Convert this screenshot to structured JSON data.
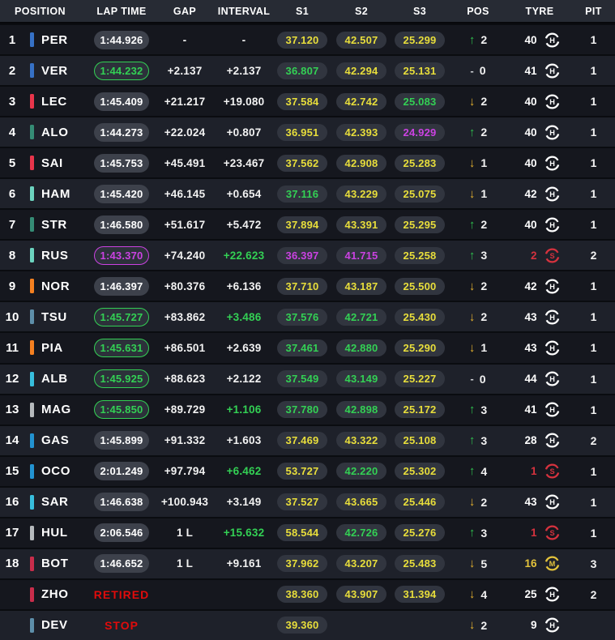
{
  "header": {
    "columns": [
      "POSITION",
      "LAP TIME",
      "GAP",
      "INTERVAL",
      "S1",
      "S2",
      "S3",
      "POS",
      "TYRE",
      "PIT"
    ]
  },
  "colors": {
    "sector_yellow": "#e8de3b",
    "sector_green": "#33d054",
    "sector_purple": "#cb42e2",
    "status_red": "#e10b0b",
    "arrow_up_green": "#2fbe4e",
    "arrow_down_yellow": "#e3b02f",
    "tyre_hard": "#ffffff",
    "tyre_soft": "#d5323e",
    "tyre_medium": "#e3c33c"
  },
  "rows": [
    {
      "position": "1",
      "team_color": "#3671C6",
      "driver": "PER",
      "lap_time": {
        "text": "1:44.926",
        "state": "normal"
      },
      "gap": {
        "text": "-",
        "state": "white"
      },
      "interval": {
        "text": "-",
        "state": "white"
      },
      "s1": {
        "text": "37.120",
        "state": "yellow"
      },
      "s2": {
        "text": "42.507",
        "state": "yellow"
      },
      "s3": {
        "text": "25.299",
        "state": "yellow"
      },
      "pos_change": {
        "dir": "up",
        "value": "2"
      },
      "tyre": {
        "laps": "40",
        "compound": "H",
        "state": "hard"
      },
      "pit": "1"
    },
    {
      "position": "2",
      "team_color": "#3671C6",
      "driver": "VER",
      "lap_time": {
        "text": "1:44.232",
        "state": "green"
      },
      "gap": {
        "text": "+2.137",
        "state": "white"
      },
      "interval": {
        "text": "+2.137",
        "state": "white"
      },
      "s1": {
        "text": "36.807",
        "state": "green"
      },
      "s2": {
        "text": "42.294",
        "state": "yellow"
      },
      "s3": {
        "text": "25.131",
        "state": "yellow"
      },
      "pos_change": {
        "dir": "none",
        "value": "0"
      },
      "tyre": {
        "laps": "41",
        "compound": "H",
        "state": "hard"
      },
      "pit": "1"
    },
    {
      "position": "3",
      "team_color": "#E8354B",
      "driver": "LEC",
      "lap_time": {
        "text": "1:45.409",
        "state": "normal"
      },
      "gap": {
        "text": "+21.217",
        "state": "white"
      },
      "interval": {
        "text": "+19.080",
        "state": "white"
      },
      "s1": {
        "text": "37.584",
        "state": "yellow"
      },
      "s2": {
        "text": "42.742",
        "state": "yellow"
      },
      "s3": {
        "text": "25.083",
        "state": "green"
      },
      "pos_change": {
        "dir": "down",
        "value": "2"
      },
      "tyre": {
        "laps": "40",
        "compound": "H",
        "state": "hard"
      },
      "pit": "1"
    },
    {
      "position": "4",
      "team_color": "#358C75",
      "driver": "ALO",
      "lap_time": {
        "text": "1:44.273",
        "state": "normal"
      },
      "gap": {
        "text": "+22.024",
        "state": "white"
      },
      "interval": {
        "text": "+0.807",
        "state": "white"
      },
      "s1": {
        "text": "36.951",
        "state": "yellow"
      },
      "s2": {
        "text": "42.393",
        "state": "yellow"
      },
      "s3": {
        "text": "24.929",
        "state": "purple"
      },
      "pos_change": {
        "dir": "up",
        "value": "2"
      },
      "tyre": {
        "laps": "40",
        "compound": "H",
        "state": "hard"
      },
      "pit": "1"
    },
    {
      "position": "5",
      "team_color": "#E8354B",
      "driver": "SAI",
      "lap_time": {
        "text": "1:45.753",
        "state": "normal"
      },
      "gap": {
        "text": "+45.491",
        "state": "white"
      },
      "interval": {
        "text": "+23.467",
        "state": "white"
      },
      "s1": {
        "text": "37.562",
        "state": "yellow"
      },
      "s2": {
        "text": "42.908",
        "state": "yellow"
      },
      "s3": {
        "text": "25.283",
        "state": "yellow"
      },
      "pos_change": {
        "dir": "down",
        "value": "1"
      },
      "tyre": {
        "laps": "40",
        "compound": "H",
        "state": "hard"
      },
      "pit": "1"
    },
    {
      "position": "6",
      "team_color": "#6CD3BF",
      "driver": "HAM",
      "lap_time": {
        "text": "1:45.420",
        "state": "normal"
      },
      "gap": {
        "text": "+46.145",
        "state": "white"
      },
      "interval": {
        "text": "+0.654",
        "state": "white"
      },
      "s1": {
        "text": "37.116",
        "state": "green"
      },
      "s2": {
        "text": "43.229",
        "state": "yellow"
      },
      "s3": {
        "text": "25.075",
        "state": "yellow"
      },
      "pos_change": {
        "dir": "down",
        "value": "1"
      },
      "tyre": {
        "laps": "42",
        "compound": "H",
        "state": "hard"
      },
      "pit": "1"
    },
    {
      "position": "7",
      "team_color": "#358C75",
      "driver": "STR",
      "lap_time": {
        "text": "1:46.580",
        "state": "normal"
      },
      "gap": {
        "text": "+51.617",
        "state": "white"
      },
      "interval": {
        "text": "+5.472",
        "state": "white"
      },
      "s1": {
        "text": "37.894",
        "state": "yellow"
      },
      "s2": {
        "text": "43.391",
        "state": "yellow"
      },
      "s3": {
        "text": "25.295",
        "state": "yellow"
      },
      "pos_change": {
        "dir": "up",
        "value": "2"
      },
      "tyre": {
        "laps": "40",
        "compound": "H",
        "state": "hard"
      },
      "pit": "1"
    },
    {
      "position": "8",
      "team_color": "#6CD3BF",
      "driver": "RUS",
      "lap_time": {
        "text": "1:43.370",
        "state": "purple"
      },
      "gap": {
        "text": "+74.240",
        "state": "white"
      },
      "interval": {
        "text": "+22.623",
        "state": "green"
      },
      "s1": {
        "text": "36.397",
        "state": "purple"
      },
      "s2": {
        "text": "41.715",
        "state": "purple"
      },
      "s3": {
        "text": "25.258",
        "state": "yellow"
      },
      "pos_change": {
        "dir": "up",
        "value": "3"
      },
      "tyre": {
        "laps": "2",
        "compound": "S",
        "state": "soft"
      },
      "pit": "2"
    },
    {
      "position": "9",
      "team_color": "#F58020",
      "driver": "NOR",
      "lap_time": {
        "text": "1:46.397",
        "state": "normal"
      },
      "gap": {
        "text": "+80.376",
        "state": "white"
      },
      "interval": {
        "text": "+6.136",
        "state": "white"
      },
      "s1": {
        "text": "37.710",
        "state": "yellow"
      },
      "s2": {
        "text": "43.187",
        "state": "yellow"
      },
      "s3": {
        "text": "25.500",
        "state": "yellow"
      },
      "pos_change": {
        "dir": "down",
        "value": "2"
      },
      "tyre": {
        "laps": "42",
        "compound": "H",
        "state": "hard"
      },
      "pit": "1"
    },
    {
      "position": "10",
      "team_color": "#5E8FAA",
      "driver": "TSU",
      "lap_time": {
        "text": "1:45.727",
        "state": "green"
      },
      "gap": {
        "text": "+83.862",
        "state": "white"
      },
      "interval": {
        "text": "+3.486",
        "state": "green"
      },
      "s1": {
        "text": "37.576",
        "state": "green"
      },
      "s2": {
        "text": "42.721",
        "state": "green"
      },
      "s3": {
        "text": "25.430",
        "state": "yellow"
      },
      "pos_change": {
        "dir": "down",
        "value": "2"
      },
      "tyre": {
        "laps": "43",
        "compound": "H",
        "state": "hard"
      },
      "pit": "1"
    },
    {
      "position": "11",
      "team_color": "#F58020",
      "driver": "PIA",
      "lap_time": {
        "text": "1:45.631",
        "state": "green"
      },
      "gap": {
        "text": "+86.501",
        "state": "white"
      },
      "interval": {
        "text": "+2.639",
        "state": "white"
      },
      "s1": {
        "text": "37.461",
        "state": "green"
      },
      "s2": {
        "text": "42.880",
        "state": "green"
      },
      "s3": {
        "text": "25.290",
        "state": "yellow"
      },
      "pos_change": {
        "dir": "down",
        "value": "1"
      },
      "tyre": {
        "laps": "43",
        "compound": "H",
        "state": "hard"
      },
      "pit": "1"
    },
    {
      "position": "12",
      "team_color": "#37BEDD",
      "driver": "ALB",
      "lap_time": {
        "text": "1:45.925",
        "state": "green"
      },
      "gap": {
        "text": "+88.623",
        "state": "white"
      },
      "interval": {
        "text": "+2.122",
        "state": "white"
      },
      "s1": {
        "text": "37.549",
        "state": "green"
      },
      "s2": {
        "text": "43.149",
        "state": "green"
      },
      "s3": {
        "text": "25.227",
        "state": "yellow"
      },
      "pos_change": {
        "dir": "none",
        "value": "0"
      },
      "tyre": {
        "laps": "44",
        "compound": "H",
        "state": "hard"
      },
      "pit": "1"
    },
    {
      "position": "13",
      "team_color": "#B6BABD",
      "driver": "MAG",
      "lap_time": {
        "text": "1:45.850",
        "state": "green"
      },
      "gap": {
        "text": "+89.729",
        "state": "white"
      },
      "interval": {
        "text": "+1.106",
        "state": "green"
      },
      "s1": {
        "text": "37.780",
        "state": "green"
      },
      "s2": {
        "text": "42.898",
        "state": "green"
      },
      "s3": {
        "text": "25.172",
        "state": "yellow"
      },
      "pos_change": {
        "dir": "up",
        "value": "3"
      },
      "tyre": {
        "laps": "41",
        "compound": "H",
        "state": "hard"
      },
      "pit": "1"
    },
    {
      "position": "14",
      "team_color": "#2293D1",
      "driver": "GAS",
      "lap_time": {
        "text": "1:45.899",
        "state": "normal"
      },
      "gap": {
        "text": "+91.332",
        "state": "white"
      },
      "interval": {
        "text": "+1.603",
        "state": "white"
      },
      "s1": {
        "text": "37.469",
        "state": "yellow"
      },
      "s2": {
        "text": "43.322",
        "state": "yellow"
      },
      "s3": {
        "text": "25.108",
        "state": "yellow"
      },
      "pos_change": {
        "dir": "up",
        "value": "3"
      },
      "tyre": {
        "laps": "28",
        "compound": "H",
        "state": "hard"
      },
      "pit": "2"
    },
    {
      "position": "15",
      "team_color": "#2293D1",
      "driver": "OCO",
      "lap_time": {
        "text": "2:01.249",
        "state": "normal"
      },
      "gap": {
        "text": "+97.794",
        "state": "white"
      },
      "interval": {
        "text": "+6.462",
        "state": "green"
      },
      "s1": {
        "text": "53.727",
        "state": "yellow"
      },
      "s2": {
        "text": "42.220",
        "state": "green"
      },
      "s3": {
        "text": "25.302",
        "state": "yellow"
      },
      "pos_change": {
        "dir": "up",
        "value": "4"
      },
      "tyre": {
        "laps": "1",
        "compound": "S",
        "state": "soft"
      },
      "pit": "1"
    },
    {
      "position": "16",
      "team_color": "#37BEDD",
      "driver": "SAR",
      "lap_time": {
        "text": "1:46.638",
        "state": "normal"
      },
      "gap": {
        "text": "+100.943",
        "state": "white"
      },
      "interval": {
        "text": "+3.149",
        "state": "white"
      },
      "s1": {
        "text": "37.527",
        "state": "yellow"
      },
      "s2": {
        "text": "43.665",
        "state": "yellow"
      },
      "s3": {
        "text": "25.446",
        "state": "yellow"
      },
      "pos_change": {
        "dir": "down",
        "value": "2"
      },
      "tyre": {
        "laps": "43",
        "compound": "H",
        "state": "hard"
      },
      "pit": "1"
    },
    {
      "position": "17",
      "team_color": "#B6BABD",
      "driver": "HUL",
      "lap_time": {
        "text": "2:06.546",
        "state": "normal"
      },
      "gap": {
        "text": "1 L",
        "state": "white"
      },
      "interval": {
        "text": "+15.632",
        "state": "green"
      },
      "s1": {
        "text": "58.544",
        "state": "yellow"
      },
      "s2": {
        "text": "42.726",
        "state": "green"
      },
      "s3": {
        "text": "25.276",
        "state": "yellow"
      },
      "pos_change": {
        "dir": "up",
        "value": "3"
      },
      "tyre": {
        "laps": "1",
        "compound": "S",
        "state": "soft"
      },
      "pit": "1"
    },
    {
      "position": "18",
      "team_color": "#C92D4B",
      "driver": "BOT",
      "lap_time": {
        "text": "1:46.652",
        "state": "normal"
      },
      "gap": {
        "text": "1 L",
        "state": "white"
      },
      "interval": {
        "text": "+9.161",
        "state": "white"
      },
      "s1": {
        "text": "37.962",
        "state": "yellow"
      },
      "s2": {
        "text": "43.207",
        "state": "yellow"
      },
      "s3": {
        "text": "25.483",
        "state": "yellow"
      },
      "pos_change": {
        "dir": "down",
        "value": "5"
      },
      "tyre": {
        "laps": "16",
        "compound": "M",
        "state": "medium"
      },
      "pit": "3"
    },
    {
      "position": "",
      "team_color": "#C92D4B",
      "driver": "ZHO",
      "lap_time": {
        "text": "RETIRED",
        "state": "status"
      },
      "gap": {
        "text": "",
        "state": "white"
      },
      "interval": {
        "text": "",
        "state": "white"
      },
      "s1": {
        "text": "38.360",
        "state": "yellow"
      },
      "s2": {
        "text": "43.907",
        "state": "yellow"
      },
      "s3": {
        "text": "31.394",
        "state": "yellow"
      },
      "pos_change": {
        "dir": "down",
        "value": "4"
      },
      "tyre": {
        "laps": "25",
        "compound": "H",
        "state": "hard"
      },
      "pit": "2"
    },
    {
      "position": "",
      "team_color": "#5E8FAA",
      "driver": "DEV",
      "lap_time": {
        "text": "STOP",
        "state": "status"
      },
      "gap": {
        "text": "",
        "state": "white"
      },
      "interval": {
        "text": "",
        "state": "white"
      },
      "s1": {
        "text": "39.360",
        "state": "yellow"
      },
      "s2": null,
      "s3": null,
      "pos_change": {
        "dir": "down",
        "value": "2"
      },
      "tyre": {
        "laps": "9",
        "compound": "H",
        "state": "hard"
      },
      "pit": ""
    }
  ]
}
